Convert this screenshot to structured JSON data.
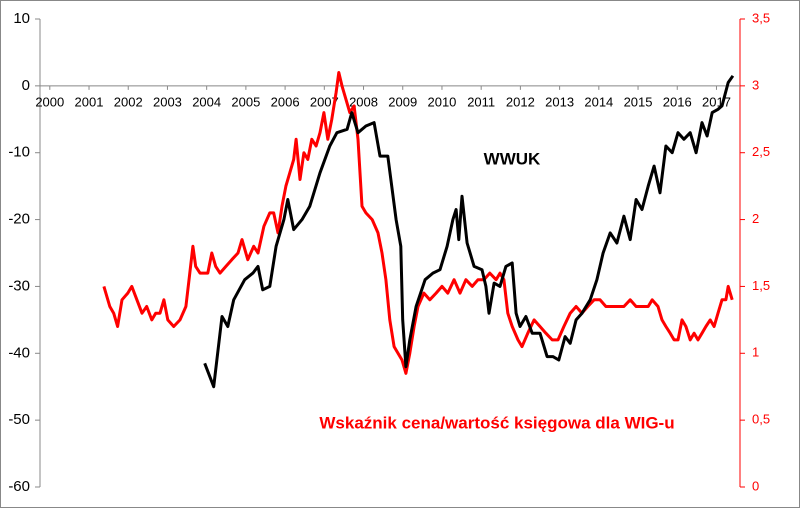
{
  "chart_data": {
    "type": "line",
    "annotations": [
      "WWUK",
      "Wskaźnik cena/wartość księgowa dla WIG-u"
    ],
    "xlim": [
      1999.75,
      2017.6
    ],
    "xticks": [
      2000,
      2001,
      2002,
      2003,
      2004,
      2005,
      2006,
      2007,
      2008,
      2009,
      2010,
      2011,
      2012,
      2013,
      2014,
      2015,
      2016,
      2017
    ],
    "ylim": [
      -60,
      10
    ],
    "yticks": [
      10,
      0,
      -10,
      -20,
      -30,
      -40,
      -50,
      -60
    ],
    "y2lim": [
      0,
      3.5
    ],
    "y2ticks": [
      {
        "value": 3.5,
        "label": "3,5"
      },
      3,
      {
        "value": 2.5,
        "label": "2,5"
      },
      2,
      {
        "value": 1.5,
        "label": "1,5"
      },
      1,
      {
        "value": 0.5,
        "label": "0,5"
      },
      0
    ],
    "series": [
      {
        "color": "#000000",
        "axis": "y",
        "x": [
          2003.95,
          2004.18,
          2004.39,
          2004.54,
          2004.69,
          2004.97,
          2005.18,
          2005.31,
          2005.43,
          2005.61,
          2005.77,
          2005.97,
          2006.07,
          2006.22,
          2006.43,
          2006.63,
          2006.89,
          2007.14,
          2007.32,
          2007.58,
          2007.7,
          2007.86,
          2008.06,
          2008.27,
          2008.42,
          2008.62,
          2008.83,
          2008.95,
          2009.0,
          2009.08,
          2009.18,
          2009.34,
          2009.57,
          2009.77,
          2009.95,
          2010.13,
          2010.28,
          2010.36,
          2010.43,
          2010.51,
          2010.64,
          2010.82,
          2011.02,
          2011.12,
          2011.2,
          2011.33,
          2011.48,
          2011.63,
          2011.79,
          2011.89,
          2011.99,
          2012.14,
          2012.3,
          2012.5,
          2012.68,
          2012.83,
          2012.98,
          2013.14,
          2013.27,
          2013.42,
          2013.57,
          2013.78,
          2013.95,
          2014.11,
          2014.29,
          2014.46,
          2014.64,
          2014.8,
          2014.95,
          2015.1,
          2015.26,
          2015.41,
          2015.56,
          2015.71,
          2015.87,
          2016.02,
          2016.17,
          2016.33,
          2016.48,
          2016.63,
          2016.76,
          2016.89,
          2017.04,
          2017.14,
          2017.3,
          2017.42
        ],
        "values": [
          -41.5,
          -45,
          -34.5,
          -36,
          -32,
          -29,
          -28,
          -27,
          -30.5,
          -30,
          -24,
          -20,
          -17,
          -21.5,
          -20,
          -18,
          -13,
          -9,
          -7,
          -6.5,
          -4,
          -7,
          -6,
          -5.5,
          -10.5,
          -10.5,
          -20,
          -24,
          -35,
          -42,
          -38,
          -33,
          -29,
          -28,
          -27.5,
          -24,
          -20,
          -18.5,
          -23,
          -16.5,
          -23.5,
          -27,
          -27.5,
          -30,
          -34,
          -29.5,
          -30,
          -27,
          -26.5,
          -34,
          -36,
          -34.5,
          -37,
          -37,
          -40.5,
          -40.5,
          -41,
          -37.5,
          -38.5,
          -35,
          -34,
          -32,
          -29,
          -25,
          -22,
          -23.5,
          -19.5,
          -23,
          -17,
          -18.5,
          -15,
          -12,
          -16,
          -9,
          -10,
          -7,
          -8,
          -7,
          -10,
          -5.5,
          -7.5,
          -4,
          -3.5,
          -3,
          0.5,
          1.5
        ]
      },
      {
        "color": "#ff0000",
        "axis": "y2",
        "x": [
          2001.38,
          2001.53,
          2001.63,
          2001.73,
          2001.84,
          2001.99,
          2002.09,
          2002.22,
          2002.35,
          2002.47,
          2002.6,
          2002.7,
          2002.81,
          2002.91,
          2003.01,
          2003.16,
          2003.32,
          2003.47,
          2003.57,
          2003.65,
          2003.72,
          2003.83,
          2003.93,
          2004.03,
          2004.13,
          2004.23,
          2004.34,
          2004.49,
          2004.64,
          2004.8,
          2004.9,
          2005.05,
          2005.2,
          2005.31,
          2005.46,
          2005.61,
          2005.71,
          2005.82,
          2005.92,
          2006.02,
          2006.12,
          2006.22,
          2006.28,
          2006.38,
          2006.48,
          2006.58,
          2006.68,
          2006.79,
          2006.89,
          2006.99,
          2007.09,
          2007.19,
          2007.3,
          2007.37,
          2007.45,
          2007.55,
          2007.65,
          2007.76,
          2007.86,
          2007.96,
          2008.06,
          2008.22,
          2008.37,
          2008.47,
          2008.57,
          2008.67,
          2008.78,
          2008.88,
          2008.98,
          2009.08,
          2009.18,
          2009.29,
          2009.39,
          2009.54,
          2009.69,
          2009.85,
          2010.0,
          2010.15,
          2010.31,
          2010.46,
          2010.61,
          2010.77,
          2010.92,
          2011.07,
          2011.22,
          2011.38,
          2011.48,
          2011.58,
          2011.68,
          2011.79,
          2011.94,
          2012.04,
          2012.19,
          2012.35,
          2012.5,
          2012.65,
          2012.81,
          2012.96,
          2013.11,
          2013.27,
          2013.42,
          2013.57,
          2013.72,
          2013.88,
          2014.03,
          2014.18,
          2014.34,
          2014.49,
          2014.64,
          2014.8,
          2014.95,
          2015.1,
          2015.26,
          2015.36,
          2015.51,
          2015.61,
          2015.71,
          2015.82,
          2015.92,
          2016.02,
          2016.12,
          2016.22,
          2016.33,
          2016.43,
          2016.53,
          2016.63,
          2016.73,
          2016.84,
          2016.94,
          2017.04,
          2017.14,
          2017.24,
          2017.3,
          2017.35,
          2017.4
        ],
        "values": [
          1.5,
          1.35,
          1.3,
          1.2,
          1.4,
          1.45,
          1.5,
          1.4,
          1.3,
          1.35,
          1.25,
          1.3,
          1.3,
          1.4,
          1.25,
          1.2,
          1.25,
          1.35,
          1.6,
          1.8,
          1.65,
          1.6,
          1.6,
          1.6,
          1.75,
          1.65,
          1.6,
          1.65,
          1.7,
          1.75,
          1.85,
          1.7,
          1.8,
          1.75,
          1.95,
          2.05,
          2.05,
          1.9,
          2.1,
          2.25,
          2.35,
          2.45,
          2.6,
          2.3,
          2.5,
          2.45,
          2.6,
          2.55,
          2.65,
          2.8,
          2.6,
          2.75,
          2.95,
          3.1,
          3.0,
          2.9,
          2.8,
          2.85,
          2.6,
          2.1,
          2.05,
          2.0,
          1.9,
          1.75,
          1.55,
          1.25,
          1.05,
          1.0,
          0.95,
          0.85,
          1.0,
          1.2,
          1.35,
          1.45,
          1.4,
          1.45,
          1.5,
          1.45,
          1.55,
          1.45,
          1.55,
          1.5,
          1.55,
          1.55,
          1.6,
          1.55,
          1.6,
          1.55,
          1.3,
          1.2,
          1.1,
          1.05,
          1.15,
          1.25,
          1.2,
          1.15,
          1.1,
          1.1,
          1.2,
          1.3,
          1.35,
          1.3,
          1.35,
          1.4,
          1.4,
          1.35,
          1.35,
          1.35,
          1.35,
          1.4,
          1.35,
          1.35,
          1.35,
          1.4,
          1.35,
          1.25,
          1.2,
          1.15,
          1.1,
          1.1,
          1.25,
          1.2,
          1.1,
          1.15,
          1.1,
          1.15,
          1.2,
          1.25,
          1.2,
          1.3,
          1.4,
          1.4,
          1.5,
          1.45,
          1.4
        ]
      }
    ]
  }
}
